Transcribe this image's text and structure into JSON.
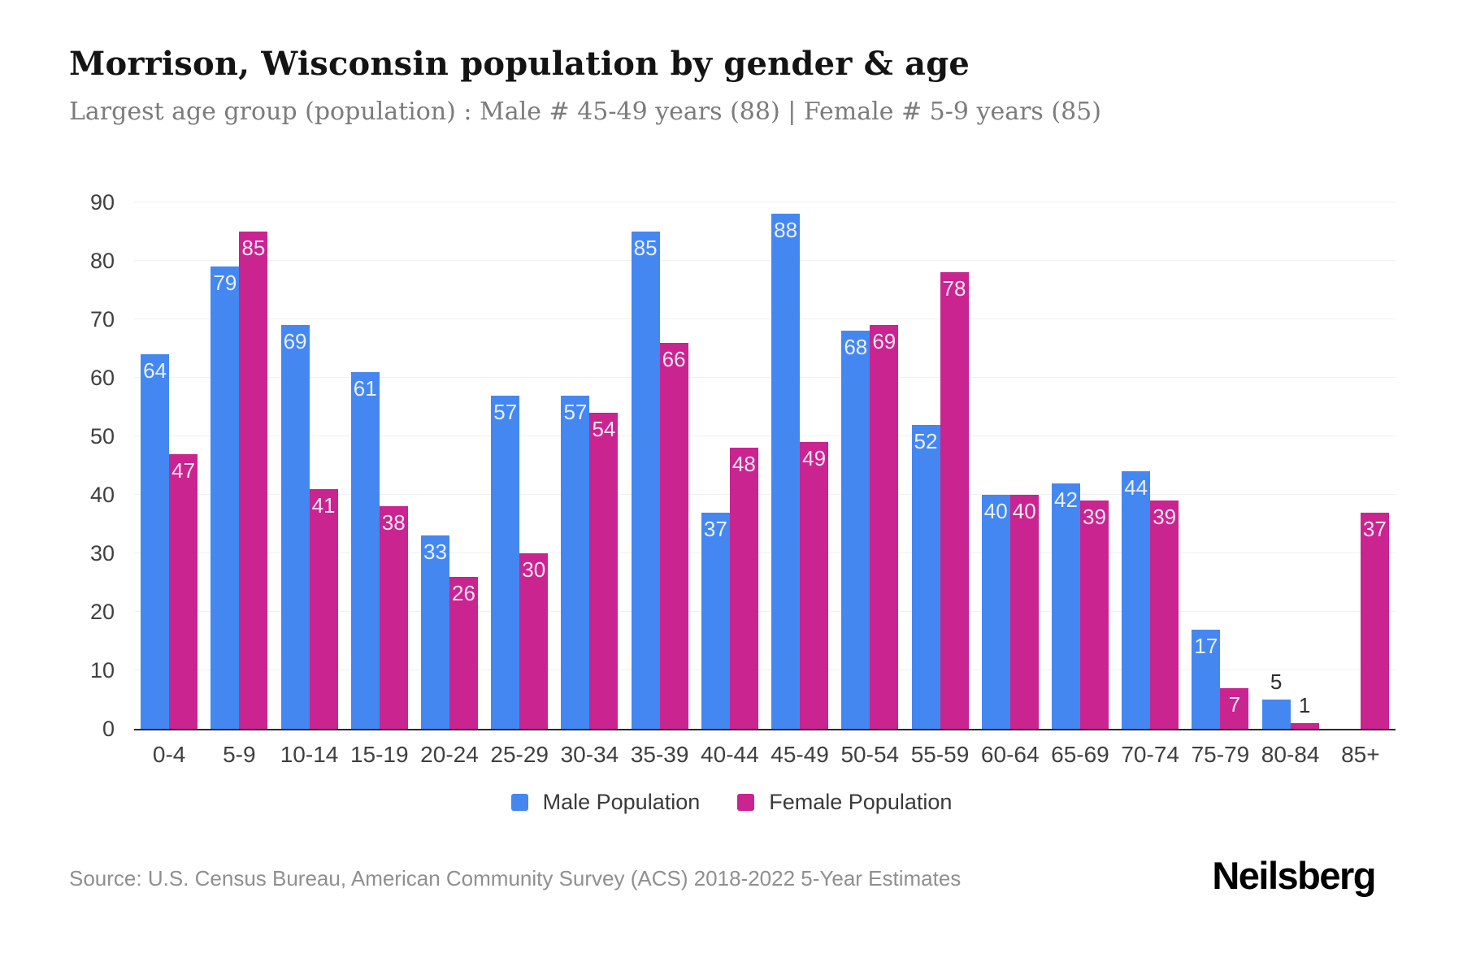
{
  "header": {
    "title": "Morrison, Wisconsin population by gender & age",
    "subtitle": "Largest age group (population) : Male # 45-49 years (88) | Female # 5-9 years (85)"
  },
  "chart_data": {
    "type": "bar",
    "title": "Morrison, Wisconsin population by gender & age",
    "categories": [
      "0-4",
      "5-9",
      "10-14",
      "15-19",
      "20-24",
      "25-29",
      "30-34",
      "35-39",
      "40-44",
      "45-49",
      "50-54",
      "55-59",
      "60-64",
      "65-69",
      "70-74",
      "75-79",
      "80-84",
      "85+"
    ],
    "series": [
      {
        "name": "Male Population",
        "color": "#4587f0",
        "values": [
          64,
          79,
          69,
          61,
          33,
          57,
          57,
          85,
          37,
          88,
          68,
          52,
          40,
          42,
          44,
          17,
          5,
          0
        ]
      },
      {
        "name": "Female Population",
        "color": "#c92490",
        "values": [
          47,
          85,
          41,
          38,
          26,
          30,
          54,
          66,
          48,
          49,
          69,
          78,
          40,
          39,
          39,
          7,
          1,
          37
        ]
      }
    ],
    "xlabel": "",
    "ylabel": "",
    "ylim": [
      0,
      90
    ],
    "yticks": [
      0,
      10,
      20,
      30,
      40,
      50,
      60,
      70,
      80,
      90
    ],
    "grid": true,
    "legend_position": "bottom"
  },
  "footer": {
    "source": "Source: U.S. Census Bureau, American Community Survey (ACS) 2018-2022 5-Year Estimates",
    "brand": "Neilsberg"
  }
}
